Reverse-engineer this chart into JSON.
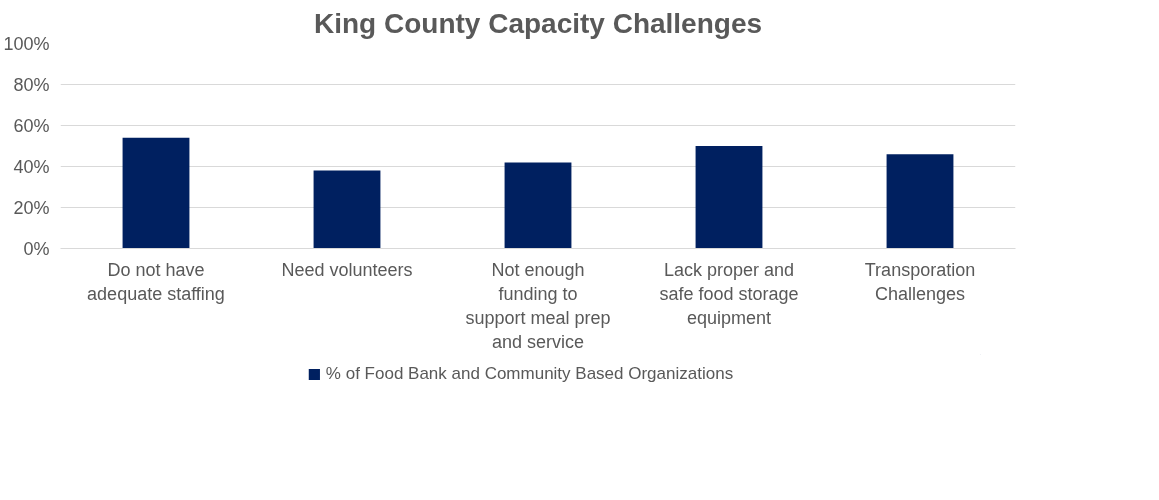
{
  "chart_data": {
    "type": "bar",
    "title": "King County Capacity Challenges",
    "categories": [
      "Do not have adequate staffing",
      "Need volunteers",
      "Not enough funding to support meal prep and service",
      "Lack proper and safe food storage equipment",
      "Transporation Challenges"
    ],
    "series": [
      {
        "name": "% of Food Bank and Community Based Organizations",
        "color": "#002060",
        "values": [
          54,
          38,
          42,
          50,
          46
        ]
      }
    ],
    "ylim": [
      0,
      100
    ],
    "yticks": [
      {
        "value": 0,
        "label": "0%"
      },
      {
        "value": 20,
        "label": "20%"
      },
      {
        "value": 40,
        "label": "40%"
      },
      {
        "value": 60,
        "label": "60%"
      },
      {
        "value": 80,
        "label": "80%"
      },
      {
        "value": 100,
        "label": "100%"
      }
    ],
    "grid": "y",
    "legend": "bottom"
  }
}
